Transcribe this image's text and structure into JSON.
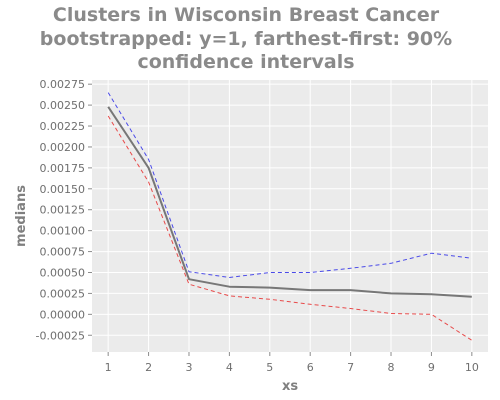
{
  "chart_data": {
    "type": "line",
    "title_lines": [
      "Clusters in Wisconsin Breast Cancer",
      "bootstrapped: y=1, farthest-first: 90%",
      "confidence intervals"
    ],
    "xlabel": "xs",
    "ylabel": "medians",
    "x": [
      1,
      2,
      3,
      4,
      5,
      6,
      7,
      8,
      9,
      10
    ],
    "x_tick_labels": [
      "1",
      "2",
      "3",
      "4",
      "5",
      "6",
      "7",
      "8",
      "9",
      "10"
    ],
    "xlim": [
      0.6,
      10.4
    ],
    "ylim": [
      -0.00045,
      0.0028
    ],
    "y_ticks": [
      -0.00025,
      0.0,
      0.00025,
      0.0005,
      0.00075,
      0.001,
      0.00125,
      0.0015,
      0.00175,
      0.002,
      0.00225,
      0.0025,
      0.00275
    ],
    "y_tick_labels": [
      "-0.00025",
      "0.00000",
      "0.00025",
      "0.00050",
      "0.00075",
      "0.00100",
      "0.00125",
      "0.00150",
      "0.00175",
      "0.00200",
      "0.00225",
      "0.00250",
      "0.00275"
    ],
    "grid": true,
    "series": [
      {
        "role": "median",
        "color": "#777777",
        "dash": "solid",
        "values": [
          0.00248,
          0.00175,
          0.00042,
          0.00033,
          0.00032,
          0.00029,
          0.00029,
          0.00025,
          0.00024,
          0.00021
        ]
      },
      {
        "role": "upper-bound",
        "color": "#4a4ae8",
        "dash": "dashed",
        "values": [
          0.00265,
          0.00185,
          0.00051,
          0.00044,
          0.0005,
          0.0005,
          0.00055,
          0.00061,
          0.00073,
          0.00067
        ]
      },
      {
        "role": "lower-bound",
        "color": "#e84a4a",
        "dash": "dashed",
        "values": [
          0.00237,
          0.00158,
          0.00036,
          0.00022,
          0.00018,
          0.00012,
          7e-05,
          1e-05,
          0.0,
          -0.00031
        ]
      }
    ],
    "colors": {
      "panel_background": "#ebebeb",
      "grid": "#ffffff",
      "title": "#8a8a8a",
      "axis_text": "#6f6f6f"
    }
  }
}
